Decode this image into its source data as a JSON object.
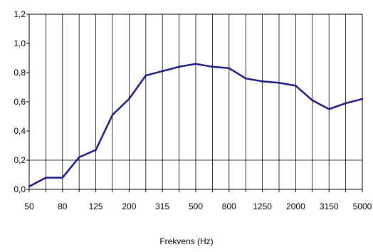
{
  "chart_data": {
    "type": "line",
    "title": "",
    "xlabel": "Frekvens (Hz)",
    "ylabel": "",
    "x": [
      "50",
      "63",
      "80",
      "100",
      "125",
      "160",
      "200",
      "250",
      "315",
      "400",
      "500",
      "630",
      "800",
      "1000",
      "1250",
      "1600",
      "2000",
      "2500",
      "3150",
      "4000",
      "5000"
    ],
    "x_tick_labels": [
      "50",
      "80",
      "125",
      "200",
      "315",
      "500",
      "800",
      "1250",
      "2000",
      "3150",
      "5000"
    ],
    "y_tick_labels": [
      "0,0",
      "0,2",
      "0,4",
      "0,6",
      "0,8",
      "1,0",
      "1,2"
    ],
    "ylim": [
      0,
      1.2
    ],
    "grid": "vertical lines at each frequency; horizontal line at 0.2 only",
    "series": [
      {
        "color": "#1a1a80",
        "values": [
          0.02,
          0.08,
          0.08,
          0.22,
          0.27,
          0.51,
          0.62,
          0.78,
          0.81,
          0.84,
          0.86,
          0.84,
          0.83,
          0.76,
          0.74,
          0.73,
          0.71,
          0.61,
          0.55,
          0.59,
          0.62
        ]
      }
    ]
  }
}
